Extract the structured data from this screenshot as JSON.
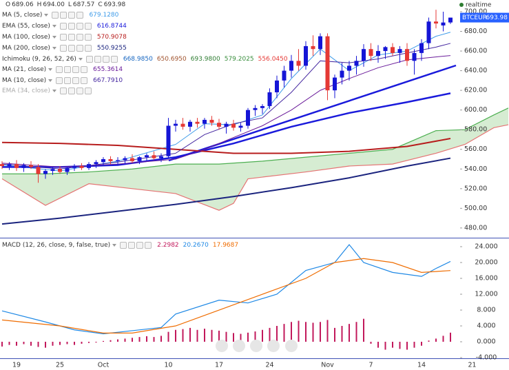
{
  "chart_data": [
    {
      "type": "candlestick",
      "symbol": "BTCEUR",
      "status": "realtime",
      "ohlc_legend": [
        {
          "label": "O",
          "value": "689.06"
        },
        {
          "label": "H",
          "value": "694.00"
        },
        {
          "label": "L",
          "value": "687.57"
        },
        {
          "label": "C",
          "value": "693.98"
        }
      ],
      "categories": [
        null,
        null,
        "19",
        null,
        null,
        null,
        null,
        null,
        "25",
        null,
        null,
        null,
        null,
        null,
        "Oct",
        null,
        null,
        null,
        null,
        null,
        null,
        null,
        null,
        "10",
        null,
        null,
        null,
        null,
        null,
        null,
        "17",
        null,
        null,
        null,
        null,
        null,
        null,
        "24",
        null,
        null,
        null,
        null,
        null,
        null,
        null,
        "Nov",
        null,
        null,
        null,
        null,
        null,
        "7",
        null,
        null,
        null,
        null,
        null,
        null,
        "14",
        null,
        null,
        null,
        null,
        null,
        null,
        "21",
        null,
        null,
        null,
        null,
        null
      ],
      "open": [
        545,
        543,
        545,
        541,
        544,
        542,
        535,
        538,
        540,
        537,
        541,
        543,
        541,
        545,
        547,
        550,
        548,
        549,
        551,
        548,
        552,
        554,
        551,
        553,
        584,
        586,
        583,
        588,
        586,
        590,
        587,
        583,
        586,
        582,
        584,
        600,
        602,
        604,
        618,
        630,
        640,
        650,
        645,
        665,
        662,
        675,
        620,
        633,
        640,
        645,
        650,
        662,
        655,
        660,
        664,
        658,
        662,
        650,
        658,
        668,
        690,
        686,
        689.06,
        null,
        null,
        null,
        null,
        null,
        null,
        null,
        null
      ],
      "high": [
        548,
        547,
        549,
        546,
        548,
        545,
        540,
        542,
        543,
        542,
        545,
        546,
        547,
        549,
        552,
        553,
        552,
        553,
        555,
        553,
        556,
        558,
        556,
        592,
        590,
        592,
        590,
        592,
        592,
        594,
        591,
        588,
        590,
        587,
        602,
        605,
        606,
        622,
        635,
        645,
        656,
        662,
        670,
        676,
        678,
        678,
        636,
        648,
        650,
        655,
        667,
        668,
        666,
        665,
        668,
        665,
        668,
        662,
        672,
        694,
        702,
        700,
        694,
        null,
        null,
        null,
        null,
        null,
        null,
        null,
        null
      ],
      "low": [
        540,
        539,
        538,
        537,
        540,
        526,
        530,
        534,
        535,
        534,
        538,
        539,
        539,
        541,
        544,
        545,
        544,
        545,
        546,
        545,
        548,
        549,
        547,
        551,
        578,
        580,
        578,
        582,
        581,
        584,
        580,
        576,
        579,
        578,
        581,
        594,
        596,
        601,
        612,
        623,
        633,
        640,
        641,
        655,
        656,
        610,
        612,
        626,
        630,
        636,
        644,
        650,
        648,
        652,
        655,
        648,
        645,
        636,
        650,
        662,
        683,
        680,
        687.57,
        null,
        null,
        null,
        null,
        null,
        null,
        null,
        null
      ],
      "close": [
        543,
        545,
        541,
        544,
        542,
        535,
        538,
        540,
        537,
        541,
        543,
        541,
        545,
        547,
        550,
        548,
        549,
        551,
        548,
        552,
        554,
        551,
        553,
        584,
        586,
        583,
        588,
        586,
        590,
        587,
        583,
        586,
        582,
        584,
        600,
        602,
        604,
        618,
        630,
        640,
        650,
        645,
        665,
        662,
        675,
        620,
        633,
        640,
        645,
        650,
        662,
        655,
        660,
        664,
        658,
        662,
        650,
        658,
        668,
        690,
        688,
        689,
        693.98,
        null,
        null,
        null,
        null,
        null,
        null,
        null,
        null
      ],
      "up_color": "#1515d6",
      "down_color": "#e53935",
      "ylim": [
        470.1,
        711.9
      ],
      "yticks": [
        {
          "value": 480,
          "label": "480.00"
        },
        {
          "value": 500,
          "label": "500.00"
        },
        {
          "value": 520,
          "label": "520.00"
        },
        {
          "value": 540,
          "label": "540.00"
        },
        {
          "value": 560,
          "label": "560.00"
        },
        {
          "value": 580,
          "label": "580.00"
        },
        {
          "value": 600,
          "label": "600.00"
        },
        {
          "value": 620,
          "label": "620.00"
        },
        {
          "value": 640,
          "label": "640.00"
        },
        {
          "value": 660,
          "label": "660.00"
        },
        {
          "value": 680,
          "label": "680.00"
        },
        {
          "value": 700,
          "label": "700.00"
        }
      ],
      "series": [
        {
          "name": "MA (5, close)",
          "readout": "679.1280",
          "color": "#3d9be9",
          "width": 1,
          "x": [
            0,
            8,
            16,
            24,
            28,
            32,
            36,
            40,
            44,
            48,
            52,
            56,
            60,
            62
          ],
          "values": [
            544,
            538,
            548,
            565,
            586,
            585,
            595,
            632,
            662,
            640,
            656,
            660,
            675,
            679.13
          ]
        },
        {
          "name": "EMA (55, close)",
          "readout": "616.8744",
          "color": "#1a1adb",
          "width": 2.5,
          "x": [
            0,
            8,
            16,
            24,
            32,
            40,
            48,
            56,
            62
          ],
          "values": [
            542,
            542,
            544,
            552,
            566,
            583,
            597,
            608,
            617
          ]
        },
        {
          "name": "MA (100, close)",
          "readout": "570.9078",
          "color": "#b71c1c",
          "width": 2,
          "x": [
            0,
            8,
            16,
            24,
            32,
            40,
            48,
            56,
            62
          ],
          "values": [
            567,
            566,
            564,
            560,
            556,
            556,
            558,
            563,
            571
          ]
        },
        {
          "name": "MA (200, close)",
          "readout": "550.9255",
          "color": "#1a237e",
          "width": 2,
          "x": [
            0,
            8,
            16,
            24,
            32,
            40,
            48,
            56,
            62
          ],
          "values": [
            484,
            490,
            497,
            504,
            512,
            521,
            531,
            543,
            551
          ]
        },
        {
          "name": "MA (21, close)",
          "readout": "655.3614",
          "color": "#6a1b9a",
          "width": 1,
          "x": [
            0,
            8,
            16,
            24,
            28,
            32,
            36,
            40,
            44,
            48,
            52,
            56,
            60,
            62
          ],
          "values": [
            546,
            542,
            545,
            550,
            560,
            572,
            584,
            600,
            620,
            632,
            643,
            651,
            654,
            655.36
          ]
        },
        {
          "name": "MA (10, close)",
          "readout": "667.7910",
          "color": "#4527a0",
          "width": 1,
          "x": [
            0,
            8,
            16,
            24,
            28,
            32,
            36,
            40,
            44,
            48,
            52,
            56,
            60,
            62
          ],
          "values": [
            545,
            540,
            547,
            556,
            575,
            586,
            592,
            618,
            650,
            648,
            652,
            658,
            664,
            667.79
          ]
        },
        {
          "name": "EMA (34, close)",
          "color": "#aaaaaa",
          "visible": false
        }
      ],
      "ichimoku": {
        "name": "Ichimoku (9, 26, 52, 26)",
        "readouts": [
          "668.9850",
          "650.6950",
          "693.9800",
          "579.2025",
          "556.0450"
        ],
        "readout_colors": [
          "#1565c0",
          "#a0522d",
          "#2e7d32",
          "#388e3c",
          "#e53935"
        ],
        "cloud_color": "#d6ecd2",
        "span_a": {
          "color": "#4caf50",
          "x": [
            0,
            6,
            12,
            18,
            24,
            30,
            36,
            42,
            48,
            54,
            60,
            64,
            68,
            70
          ],
          "values": [
            535,
            535,
            537,
            540,
            545,
            545,
            548,
            552,
            556,
            560,
            579,
            580,
            595,
            602
          ]
        },
        "span_b": {
          "color": "#e57373",
          "x": [
            0,
            6,
            12,
            18,
            24,
            30,
            32,
            34,
            42,
            48,
            54,
            60,
            64,
            68,
            70
          ],
          "values": [
            530,
            503,
            525,
            520,
            515,
            498,
            505,
            530,
            537,
            543,
            545,
            556,
            565,
            582,
            585
          ]
        }
      }
    },
    {
      "type": "macd",
      "name": "MACD (12, 26, close, 9, false, true)",
      "readouts": [
        "2.2982",
        "20.2670",
        "17.9687"
      ],
      "readout_colors": [
        "#c2185b",
        "#1e88e5",
        "#ef6c00"
      ],
      "histogram": {
        "color": "#c2185b",
        "values": [
          -1.2,
          -0.8,
          -1,
          -0.6,
          -1,
          -1.3,
          -1.5,
          -1,
          -0.8,
          -0.6,
          -0.8,
          -0.5,
          -0.3,
          -0.2,
          0.2,
          0.4,
          0.6,
          0.8,
          1,
          1.2,
          1.4,
          1.2,
          1.5,
          2.5,
          3,
          3.2,
          3.5,
          3,
          3.3,
          3,
          2.8,
          2.5,
          2.2,
          2,
          2.3,
          2.6,
          3,
          3.5,
          4,
          4.5,
          5,
          5.3,
          5,
          4.8,
          5,
          5.5,
          3.5,
          4,
          4.5,
          5,
          5.8,
          -0.5,
          -1.5,
          -2,
          -1.5,
          -1.8,
          -2,
          -1.5,
          -1,
          0.3,
          0.8,
          1.5,
          2.3,
          null,
          null,
          null,
          null,
          null,
          null,
          null,
          null
        ]
      },
      "series": [
        {
          "color": "#1e88e5",
          "x": [
            0,
            6,
            10,
            14,
            18,
            22,
            24,
            30,
            34,
            38,
            42,
            46,
            48,
            50,
            54,
            58,
            60,
            62
          ],
          "values": [
            7.8,
            5,
            3,
            2,
            2.8,
            3.6,
            7,
            10.5,
            9.8,
            12,
            18,
            20,
            24.5,
            20,
            17.5,
            16.5,
            18.5,
            20.267
          ]
        },
        {
          "color": "#ef6c00",
          "x": [
            0,
            8,
            14,
            18,
            24,
            30,
            36,
            42,
            46,
            50,
            54,
            58,
            62
          ],
          "values": [
            5.5,
            4,
            2.2,
            2.2,
            4,
            8,
            12,
            16,
            20,
            21,
            20,
            17.5,
            17.9687
          ]
        }
      ],
      "ylim": [
        -4.17,
        26.26
      ],
      "yticks": [
        {
          "value": -4,
          "label": "-4.000"
        },
        {
          "value": 0,
          "label": "0.000"
        },
        {
          "value": 4,
          "label": "4.000"
        },
        {
          "value": 8,
          "label": "8.000"
        },
        {
          "value": 12,
          "label": "12.000"
        },
        {
          "value": 16,
          "label": "16.000"
        },
        {
          "value": 20,
          "label": "20.000"
        },
        {
          "value": 24,
          "label": "24.000"
        }
      ]
    }
  ]
}
